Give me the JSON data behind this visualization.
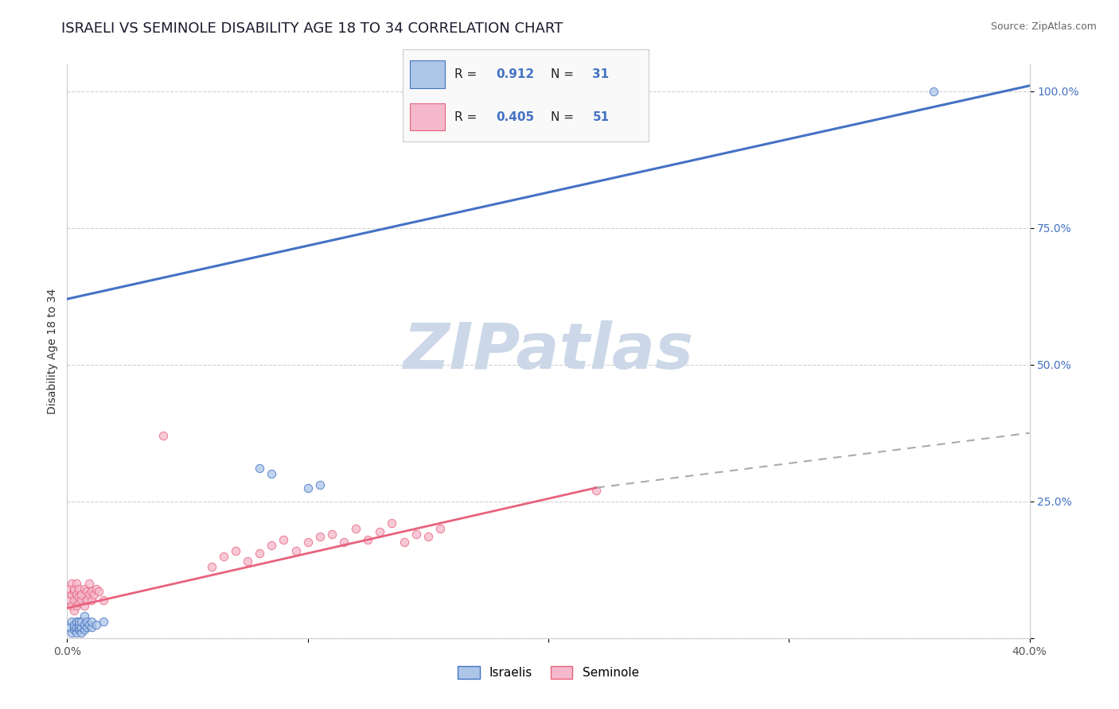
{
  "title": "ISRAELI VS SEMINOLE DISABILITY AGE 18 TO 34 CORRELATION CHART",
  "source": "Source: ZipAtlas.com",
  "ylabel": "Disability Age 18 to 34",
  "xlim": [
    0.0,
    0.4
  ],
  "ylim": [
    0.0,
    1.05
  ],
  "xticks": [
    0.0,
    0.1,
    0.2,
    0.3,
    0.4
  ],
  "xtick_labels": [
    "0.0%",
    "",
    "",
    "",
    "40.0%"
  ],
  "yticks": [
    0.0,
    0.25,
    0.5,
    0.75,
    1.0
  ],
  "ytick_labels": [
    "",
    "25.0%",
    "50.0%",
    "75.0%",
    "100.0%"
  ],
  "israeli_color": "#adc6e8",
  "seminole_color": "#f5b8cc",
  "israeli_line_color": "#4472c4",
  "seminole_line_color": "#e8637d",
  "R_israeli": 0.912,
  "N_israeli": 31,
  "R_seminole": 0.405,
  "N_seminole": 51,
  "watermark": "ZIPatlas",
  "watermark_color": "#ccd8e8",
  "title_fontsize": 13,
  "axis_label_fontsize": 10,
  "tick_fontsize": 10,
  "isr_line": [
    [
      0.0,
      0.62
    ],
    [
      0.4,
      1.01
    ]
  ],
  "sem_line_solid": [
    [
      0.0,
      0.055
    ],
    [
      0.22,
      0.275
    ]
  ],
  "sem_line_dash": [
    [
      0.22,
      0.275
    ],
    [
      0.4,
      0.375
    ]
  ],
  "israeli_scatter": [
    [
      0.001,
      0.02
    ],
    [
      0.002,
      0.01
    ],
    [
      0.002,
      0.03
    ],
    [
      0.003,
      0.015
    ],
    [
      0.003,
      0.02
    ],
    [
      0.003,
      0.025
    ],
    [
      0.004,
      0.01
    ],
    [
      0.004,
      0.02
    ],
    [
      0.004,
      0.03
    ],
    [
      0.005,
      0.015
    ],
    [
      0.005,
      0.02
    ],
    [
      0.005,
      0.025
    ],
    [
      0.005,
      0.03
    ],
    [
      0.006,
      0.01
    ],
    [
      0.006,
      0.02
    ],
    [
      0.006,
      0.03
    ],
    [
      0.007,
      0.015
    ],
    [
      0.007,
      0.025
    ],
    [
      0.007,
      0.04
    ],
    [
      0.008,
      0.02
    ],
    [
      0.008,
      0.03
    ],
    [
      0.009,
      0.025
    ],
    [
      0.01,
      0.02
    ],
    [
      0.01,
      0.03
    ],
    [
      0.012,
      0.025
    ],
    [
      0.015,
      0.03
    ],
    [
      0.08,
      0.31
    ],
    [
      0.085,
      0.3
    ],
    [
      0.1,
      0.275
    ],
    [
      0.105,
      0.28
    ],
    [
      0.36,
      1.0
    ]
  ],
  "seminole_scatter": [
    [
      0.001,
      0.07
    ],
    [
      0.001,
      0.09
    ],
    [
      0.002,
      0.06
    ],
    [
      0.002,
      0.08
    ],
    [
      0.002,
      0.1
    ],
    [
      0.003,
      0.05
    ],
    [
      0.003,
      0.07
    ],
    [
      0.003,
      0.085
    ],
    [
      0.003,
      0.09
    ],
    [
      0.004,
      0.06
    ],
    [
      0.004,
      0.08
    ],
    [
      0.004,
      0.1
    ],
    [
      0.005,
      0.065
    ],
    [
      0.005,
      0.075
    ],
    [
      0.005,
      0.09
    ],
    [
      0.006,
      0.07
    ],
    [
      0.006,
      0.08
    ],
    [
      0.007,
      0.06
    ],
    [
      0.007,
      0.09
    ],
    [
      0.008,
      0.07
    ],
    [
      0.008,
      0.085
    ],
    [
      0.009,
      0.08
    ],
    [
      0.009,
      0.1
    ],
    [
      0.01,
      0.07
    ],
    [
      0.01,
      0.085
    ],
    [
      0.011,
      0.08
    ],
    [
      0.012,
      0.09
    ],
    [
      0.013,
      0.085
    ],
    [
      0.015,
      0.07
    ],
    [
      0.04,
      0.37
    ],
    [
      0.06,
      0.13
    ],
    [
      0.065,
      0.15
    ],
    [
      0.07,
      0.16
    ],
    [
      0.075,
      0.14
    ],
    [
      0.08,
      0.155
    ],
    [
      0.085,
      0.17
    ],
    [
      0.09,
      0.18
    ],
    [
      0.095,
      0.16
    ],
    [
      0.1,
      0.175
    ],
    [
      0.105,
      0.185
    ],
    [
      0.11,
      0.19
    ],
    [
      0.115,
      0.175
    ],
    [
      0.12,
      0.2
    ],
    [
      0.125,
      0.18
    ],
    [
      0.13,
      0.195
    ],
    [
      0.135,
      0.21
    ],
    [
      0.14,
      0.175
    ],
    [
      0.145,
      0.19
    ],
    [
      0.15,
      0.185
    ],
    [
      0.155,
      0.2
    ],
    [
      0.22,
      0.27
    ]
  ]
}
